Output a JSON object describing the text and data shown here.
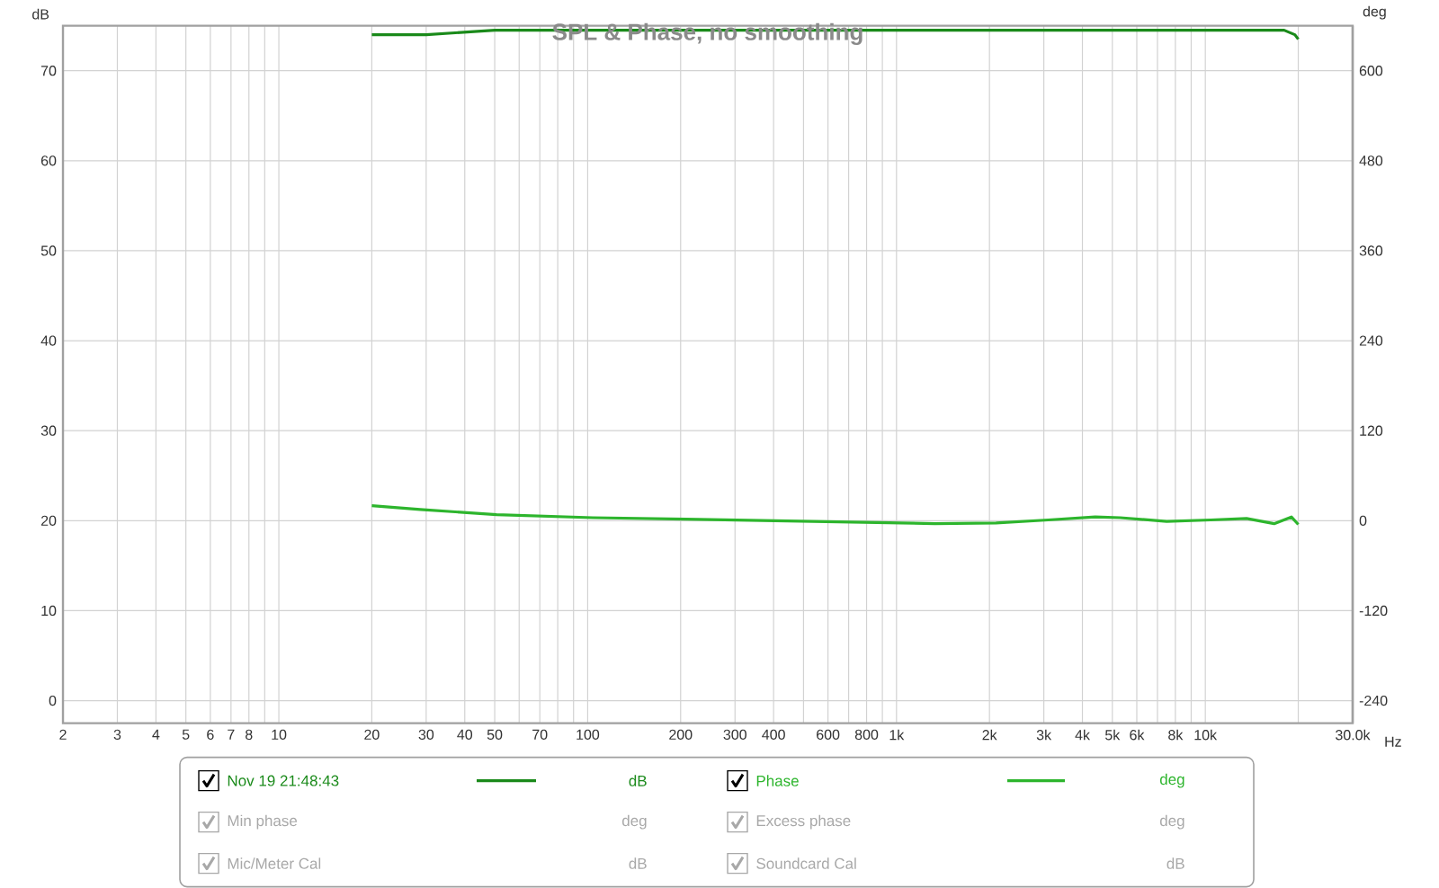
{
  "chart_data": {
    "type": "line",
    "title": "SPL & Phase, no smoothing",
    "xlabel": "Hz",
    "ylabel": "dB",
    "y2label": "deg",
    "log": "x",
    "grid": true,
    "legend": "bottom",
    "xlim": [
      2,
      30000
    ],
    "ylim": [
      -2.5,
      75
    ],
    "y2lim": [
      -270,
      660
    ],
    "xticks": [
      2,
      3,
      4,
      5,
      6,
      7,
      8,
      {
        "value": 9,
        "label": null
      },
      10,
      20,
      30,
      40,
      50,
      {
        "value": 60,
        "label": null
      },
      70,
      {
        "value": 80,
        "label": null
      },
      {
        "value": 90,
        "label": null
      },
      100,
      200,
      300,
      400,
      {
        "value": 500,
        "label": null
      },
      600,
      {
        "value": 700,
        "label": null
      },
      800,
      {
        "value": 900,
        "label": null
      },
      {
        "value": 1000,
        "label": "1k"
      },
      {
        "value": 2000,
        "label": "2k"
      },
      {
        "value": 3000,
        "label": "3k"
      },
      {
        "value": 4000,
        "label": "4k"
      },
      {
        "value": 5000,
        "label": "5k"
      },
      {
        "value": 6000,
        "label": "6k"
      },
      {
        "value": 7000,
        "label": null
      },
      {
        "value": 8000,
        "label": "8k"
      },
      {
        "value": 9000,
        "label": null
      },
      {
        "value": 10000,
        "label": "10k"
      },
      {
        "value": 20000,
        "label": null
      },
      {
        "value": 30000,
        "label": "30.0k"
      }
    ],
    "yticks": [
      0,
      10,
      20,
      30,
      40,
      50,
      60,
      70
    ],
    "y2ticks": [
      -240,
      -120,
      0,
      120,
      240,
      360,
      480,
      600
    ],
    "series": [
      {
        "name": "Nov 19 21:48:43",
        "color": "#1a8a1a",
        "x": [
          20,
          25,
          30,
          50,
          100,
          1000,
          10000,
          15000,
          18000,
          19500,
          20000
        ],
        "values": [
          74,
          74,
          74,
          74.5,
          74.5,
          74.5,
          74.5,
          74.5,
          74.5,
          74,
          73.5
        ]
      },
      {
        "name": "Phase",
        "color": "#2db52d",
        "axis": "y2",
        "x": [
          20,
          28.7,
          50.7,
          104,
          208,
          1040,
          1330,
          2100,
          3100,
          4400,
          5300,
          7500,
          10400,
          13600,
          16700,
          19000,
          20000
        ],
        "values": [
          20,
          15,
          8,
          4,
          2,
          -3,
          -4,
          -3,
          1,
          5,
          4,
          -1,
          1,
          3,
          -4,
          5,
          -5
        ]
      }
    ],
    "annotations": [
      "Min phase",
      "deg",
      "Excess phase",
      "deg",
      "Mic/Meter Cal",
      "dB",
      "Soundcard Cal",
      "dB"
    ]
  }
}
